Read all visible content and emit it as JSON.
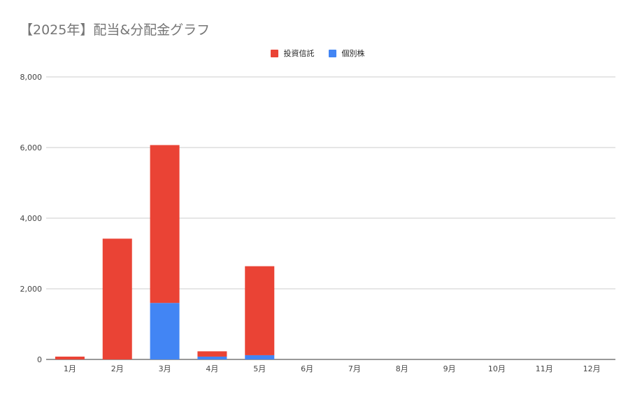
{
  "chart_data": {
    "type": "bar",
    "stacked": true,
    "title": "【2025年】配当&分配金グラフ",
    "categories": [
      "1月",
      "2月",
      "3月",
      "4月",
      "5月",
      "6月",
      "7月",
      "8月",
      "9月",
      "10月",
      "11月",
      "12月"
    ],
    "series": [
      {
        "name": "個別株",
        "color": "#4285f4",
        "values": [
          0,
          0,
          1600,
          80,
          120,
          0,
          0,
          0,
          0,
          0,
          0,
          0
        ]
      },
      {
        "name": "投資信託",
        "color": "#ea4335",
        "values": [
          80,
          3420,
          4470,
          150,
          2520,
          0,
          0,
          0,
          0,
          0,
          0,
          0
        ]
      }
    ],
    "ylim": [
      0,
      8000
    ],
    "yticks": [
      0,
      2000,
      4000,
      6000,
      8000
    ],
    "ytick_labels": [
      "0",
      "2,000",
      "4,000",
      "6,000",
      "8,000"
    ],
    "grid": true,
    "legend_position": "top-center",
    "legend_order": [
      "投資信託",
      "個別株"
    ]
  }
}
